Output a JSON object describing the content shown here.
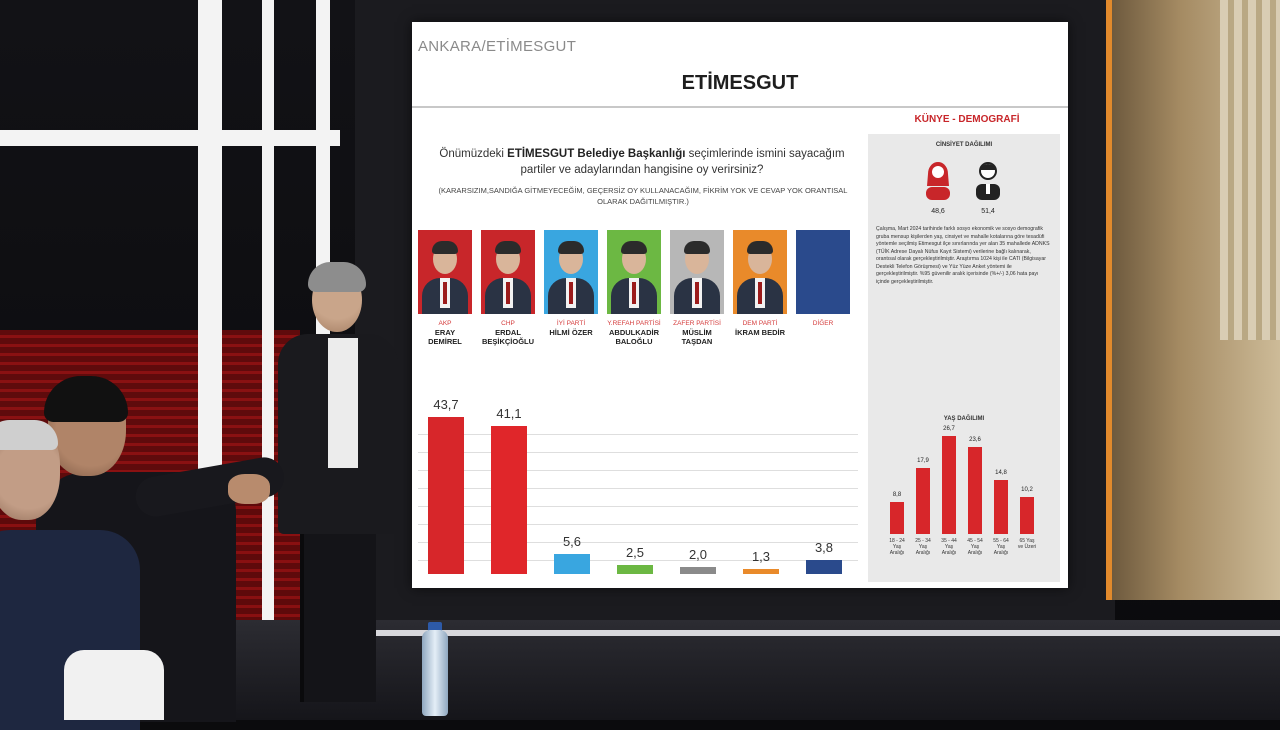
{
  "slide": {
    "location": "ANKARA/ETİMESGUT",
    "title": "ETİMESGUT",
    "question_prefix": "Önümüzdeki ",
    "question_bold": "ETİMESGUT Belediye Başkanlığı",
    "question_suffix": " seçimlerinde ismini sayacağım partiler ve adaylarından hangisine oy verirsiniz?",
    "note": "(KARARSIZIM,SANDIĞA GİTMEYECEĞİM, GEÇERSİZ OY KULLANACAĞIM, FİKRİM YOK VE CEVAP YOK ORANTISAL OLARAK DAĞITILMIŞTIR.)"
  },
  "candidates": [
    {
      "party": "AKP",
      "name": "ERAY DEMİREL",
      "photo_bg": "#c8262a"
    },
    {
      "party": "CHP",
      "name": "ERDAL BEŞİKÇİOĞLU",
      "photo_bg": "#c8262a"
    },
    {
      "party": "İYİ PARTİ",
      "name": "HİLMİ ÖZER",
      "photo_bg": "#39a6e0"
    },
    {
      "party": "Y.REFAH PARTİSİ",
      "name": "ABDULKADİR BALOĞLU",
      "photo_bg": "#6cb843"
    },
    {
      "party": "ZAFER PARTİSİ",
      "name": "MÜSLİM TAŞDAN",
      "photo_bg": "#b7b7b7"
    },
    {
      "party": "DEM PARTİ",
      "name": "İKRAM BEDİR",
      "photo_bg": "#e98a2a"
    },
    {
      "party": "DİĞER",
      "name": "",
      "photo_bg": "#2a4a8c"
    }
  ],
  "chart_data": [
    {
      "type": "bar",
      "categories": [
        "ERAY DEMİREL",
        "ERDAL BEŞİKÇİOĞLU",
        "HİLMİ ÖZER",
        "ABDULKADİR BALOĞLU",
        "MÜSLİM TAŞDAN",
        "İKRAM BEDİR",
        "DİĞER"
      ],
      "values": [
        43.7,
        41.1,
        5.6,
        2.5,
        2.0,
        1.3,
        3.8
      ],
      "value_labels": [
        "43,7",
        "41,1",
        "5,6",
        "2,5",
        "2,0",
        "1,3",
        "3,8"
      ],
      "colors": [
        "#d7262a",
        "#e0262a",
        "#39a6e0",
        "#6cb843",
        "#8a8a8a",
        "#e98a2a",
        "#2a4a8c"
      ],
      "ylim": [
        0,
        50
      ],
      "grid": true
    },
    {
      "type": "bar",
      "title": "YAŞ DAĞILIMI",
      "categories": [
        "18 - 24 Yaş Aralığı",
        "25 - 34 Yaş Aralığı",
        "35 - 44 Yaş Aralığı",
        "45 - 54 Yaş Aralığı",
        "55 - 64 Yaş Aralığı",
        "65 Yaş ve Üzeri"
      ],
      "values": [
        8.8,
        17.9,
        26.7,
        23.6,
        14.8,
        10.2
      ],
      "value_labels": [
        "8,8",
        "17,9",
        "26,7",
        "23,6",
        "14,8",
        "10,2"
      ],
      "color": "#d7262a",
      "ylim": [
        0,
        30
      ]
    }
  ],
  "panel": {
    "header": "KÜNYE - DEMOGRAFİ",
    "gender_title": "CİNSİYET DAĞILIMI",
    "female_value": "48,6",
    "male_value": "51,4",
    "body": "Çalışma, Mart 2024 tarihinde farklı sosyo ekonomik ve sosyo demografik gruba mensup kişilerden yaş, cinsiyet ve mahalle kotalarına göre tesadüfi yöntemle seçilmiş Etimesgut ilçe sınırlarında yer alan 35 mahallede ADNKS (TÜİK Adrese Dayalı Nüfus Kayıt Sistemi) verilerine bağlı kalınarak, orantısal olarak gerçekleştirilmiştir. Araştırma 1024 kişi ile CATI (Bilgisayar Destekli Telefon Görüşmesi) ve Yüz Yüze Anket yöntemi ile gerçekleştirilmiştir. %95 güvenilir aralık içerisinde (%+/-) 3,06 hata payı içinde gerçekleştirilmiştir."
  }
}
